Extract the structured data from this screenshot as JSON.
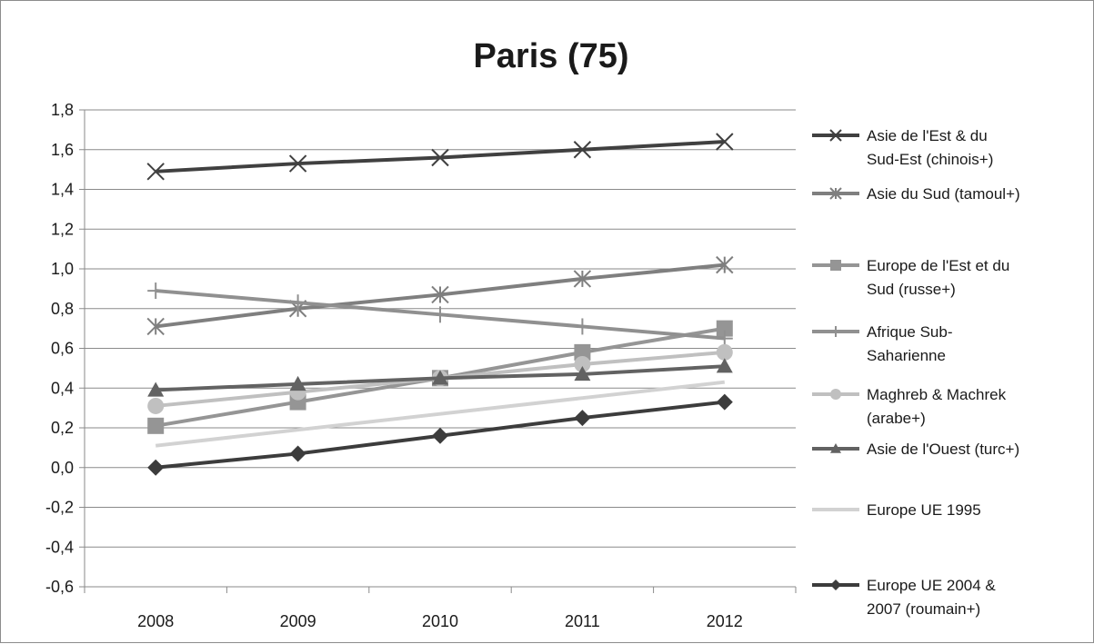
{
  "chart_data": {
    "type": "line",
    "title": "Paris (75)",
    "xlabel": "",
    "ylabel": "",
    "categories": [
      "2008",
      "2009",
      "2010",
      "2011",
      "2012"
    ],
    "ylim": [
      -0.6,
      1.8
    ],
    "yticks": [
      "1,8",
      "1,6",
      "1,4",
      "1,2",
      "1,0",
      "0,8",
      "0,6",
      "0,4",
      "0,2",
      "0,0",
      "-0,2",
      "-0,4",
      "-0,6"
    ],
    "ytick_values": [
      1.8,
      1.6,
      1.4,
      1.2,
      1.0,
      0.8,
      0.6,
      0.4,
      0.2,
      0.0,
      -0.2,
      -0.4,
      -0.6
    ],
    "grid": true,
    "legend_position": "right",
    "series": [
      {
        "name": "Asie de l'Est & du Sud-Est (chinois+)",
        "legend_lines": [
          "Asie de l'Est & du",
          "Sud-Est (chinois+)"
        ],
        "values": [
          1.49,
          1.53,
          1.56,
          1.6,
          1.64
        ],
        "color": "#404040",
        "marker": "x",
        "width": 4
      },
      {
        "name": "Asie du Sud (tamoul+)",
        "legend_lines": [
          "Asie du Sud (tamoul+)"
        ],
        "values": [
          0.71,
          0.8,
          0.87,
          0.95,
          1.02
        ],
        "color": "#7f7f7f",
        "marker": "star",
        "width": 4
      },
      {
        "name": "Europe de l'Est et du Sud (russe+)",
        "legend_lines": [
          "Europe de l'Est et du",
          "Sud (russe+)"
        ],
        "values": [
          0.21,
          0.33,
          0.45,
          0.58,
          0.7
        ],
        "color": "#959595",
        "marker": "square",
        "width": 4
      },
      {
        "name": "Afrique Sub-Saharienne",
        "legend_lines": [
          "Afrique Sub-",
          "Saharienne"
        ],
        "values": [
          0.89,
          0.83,
          0.77,
          0.71,
          0.65
        ],
        "color": "#909090",
        "marker": "plus",
        "width": 4
      },
      {
        "name": "Maghreb & Machrek (arabe+)",
        "legend_lines": [
          "Maghreb & Machrek",
          "(arabe+)"
        ],
        "values": [
          0.31,
          0.38,
          0.45,
          0.52,
          0.58
        ],
        "color": "#c0c0c0",
        "marker": "circle",
        "width": 4
      },
      {
        "name": "Asie de l'Ouest (turc+)",
        "legend_lines": [
          "Asie de l'Ouest (turc+)"
        ],
        "values": [
          0.39,
          0.42,
          0.45,
          0.47,
          0.51
        ],
        "color": "#626262",
        "marker": "triangle",
        "width": 4
      },
      {
        "name": "Europe UE 1995",
        "legend_lines": [
          "Europe UE 1995"
        ],
        "values": [
          0.11,
          0.19,
          0.27,
          0.35,
          0.43
        ],
        "color": "#d2d2d2",
        "marker": "none",
        "width": 4
      },
      {
        "name": "Europe UE 2004 & 2007 (roumain+)",
        "legend_lines": [
          "Europe UE 2004 &",
          "2007 (roumain+)"
        ],
        "values": [
          0.0,
          0.07,
          0.16,
          0.25,
          0.33
        ],
        "color": "#3c3c3c",
        "marker": "diamond",
        "width": 4
      }
    ]
  }
}
